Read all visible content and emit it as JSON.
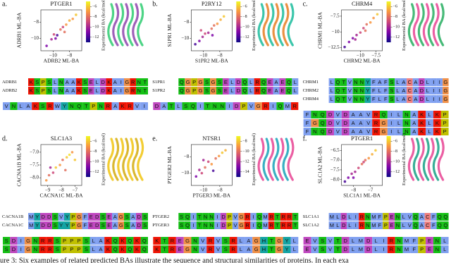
{
  "chart_data": [
    {
      "type": "scatter",
      "label": "a.",
      "title": "PTGER1",
      "xlabel": "ADRB2 ML-BA",
      "ylabel": "ADRB1 ML-BA",
      "colorbar_label": "Experimental BA (kcal/mol)",
      "x": [
        -10.8,
        -10.2,
        -9.9,
        -9.5,
        -9.1,
        -8.8,
        -8.4,
        -8.0,
        -7.6,
        -7.2,
        -9.7,
        -8.6
      ],
      "y": [
        -10.9,
        -10.1,
        -9.5,
        -9.6,
        -8.9,
        -8.6,
        -8.3,
        -7.8,
        -7.6,
        -7.1,
        -10.0,
        -9.2
      ],
      "c": [
        -11,
        -10,
        -9,
        -12,
        -8,
        -9,
        -7,
        -6.5,
        -7,
        -6,
        -11,
        -8
      ],
      "xlim": [
        -11.5,
        -6.5
      ],
      "ylim": [
        -11.5,
        -6.5
      ],
      "xticks": [
        {
          "value": -10,
          "label": "−10"
        },
        {
          "value": -8,
          "label": "−8"
        }
      ],
      "yticks": [
        {
          "value": -10,
          "label": "−10"
        },
        {
          "value": -8,
          "label": "−8"
        }
      ],
      "clim": [
        -13,
        -5
      ],
      "cticks": [
        {
          "value": -6,
          "label": "−6"
        },
        {
          "value": -8,
          "label": "−8"
        },
        {
          "value": -10,
          "label": "−10"
        },
        {
          "value": -12,
          "label": "−12"
        }
      ],
      "alignment": [
        [
          {
            "name": "ADRB1",
            "sequence": "KSPSLNAAKSELDKAIGRNT"
          },
          {
            "name": "ADRB2",
            "sequence": "KSPSLNAAKSELDKAIGRNT"
          }
        ],
        [
          {
            "sequence": "VNLAKSRWYNQTPNRAKRVI"
          }
        ]
      ]
    },
    {
      "type": "scatter",
      "label": "b.",
      "title": "P2RY12",
      "xlabel": "S1PR2 ML-BA",
      "ylabel": "S1PR1 ML-BA",
      "colorbar_label": "Experimental BA (kcal/mol)",
      "x": [
        -11.0,
        -10.5,
        -10.1,
        -9.8,
        -9.4,
        -9.0,
        -8.7,
        -8.3,
        -7.9,
        -7.5,
        -10.3,
        -8.9
      ],
      "y": [
        -10.7,
        -10.3,
        -9.8,
        -9.4,
        -9.3,
        -8.8,
        -8.4,
        -8.2,
        -7.7,
        -7.3,
        -9.0,
        -9.6
      ],
      "c": [
        -12,
        -11,
        -10,
        -9,
        -10,
        -8,
        -8,
        -7,
        -6.5,
        -6,
        -9,
        -11
      ],
      "xlim": [
        -11.5,
        -6.5
      ],
      "ylim": [
        -11.5,
        -6.5
      ],
      "xticks": [
        {
          "value": -10,
          "label": "−10"
        },
        {
          "value": -8,
          "label": "−8"
        }
      ],
      "yticks": [
        {
          "value": -10,
          "label": "−10"
        },
        {
          "value": -8,
          "label": "−8"
        }
      ],
      "clim": [
        -13,
        -5
      ],
      "cticks": [
        {
          "value": -6,
          "label": "−6"
        },
        {
          "value": -8,
          "label": "−8"
        },
        {
          "value": -10,
          "label": "−10"
        },
        {
          "value": -12,
          "label": "−12"
        }
      ],
      "alignment": [
        [
          {
            "name": "S1PR1",
            "sequence": "QGPGSGSELDQLRQEAEQL"
          },
          {
            "name": "S1PR2",
            "sequence": "QGPGSGSELDQLRQEAEQL"
          }
        ],
        [
          {
            "sequence": "DATLSQITNNIDPVGRIQMR"
          }
        ]
      ]
    },
    {
      "type": "scatter",
      "label": "c.",
      "title": "CHRM4",
      "xlabel": "CHRM2 ML-BA",
      "ylabel": "CHRM1 ML-BA",
      "colorbar_label": "Experimental BA (kcal/mol)",
      "x": [
        -12.5,
        -11.8,
        -11.2,
        -10.6,
        -10.0,
        -9.5,
        -9.0,
        -8.4,
        -7.9,
        -7.3,
        -10.8,
        -9.2
      ],
      "y": [
        -12.4,
        -11.6,
        -11.0,
        -10.5,
        -10.1,
        -9.4,
        -8.8,
        -8.5,
        -7.8,
        -7.2,
        -11.2,
        -9.8
      ],
      "c": [
        -12,
        -11,
        -11,
        -10,
        -9,
        -9,
        -8,
        -7,
        -7,
        -6,
        -10,
        -8
      ],
      "xlim": [
        -13,
        -6.5
      ],
      "ylim": [
        -13,
        -6.5
      ],
      "xticks": [
        {
          "value": -10,
          "label": "−10"
        },
        {
          "value": -7.5,
          "label": "−7.5"
        }
      ],
      "yticks": [
        {
          "value": -12.5,
          "label": "−12.5"
        },
        {
          "value": -10,
          "label": "−10"
        },
        {
          "value": -7.5,
          "label": "−7.5"
        }
      ],
      "clim": [
        -13,
        -5
      ],
      "cticks": [
        {
          "value": -6,
          "label": "−6"
        },
        {
          "value": -8,
          "label": "−8"
        },
        {
          "value": -10,
          "label": "−10"
        },
        {
          "value": -12,
          "label": "−12"
        }
      ],
      "alignment": [
        [
          {
            "name": "CHRM1",
            "sequence": "LQTVNNYFAFSLACADLIIG"
          },
          {
            "name": "CHRM2",
            "sequence": "LQTVNNYFLFSLACADLIIG"
          },
          {
            "name": "CHRM4",
            "sequence": "LQTVNNYFLFSLACADLIIG"
          }
        ],
        [
          {
            "sequence": "FNQDVDAAVRQILNAKLKP"
          },
          {
            "sequence": "FGQDVDAAVRGILNAKLKP"
          },
          {
            "sequence": "FNQDVDAAVRGILNAKLKP"
          }
        ]
      ]
    },
    {
      "type": "scatter",
      "label": "d.",
      "title": "SLC1A3",
      "xlabel": "CACNA1C ML-BA",
      "ylabel": "CACNA1B ML-BA",
      "colorbar_label": "Experimental BA (kcal/mol)",
      "x": [
        -9.1,
        -8.9,
        -8.6,
        -8.4,
        -8.1,
        -7.9,
        -7.6,
        -7.4,
        -7.2,
        -7.0,
        -8.8,
        -7.7
      ],
      "y": [
        -8.1,
        -7.9,
        -7.8,
        -7.6,
        -7.5,
        -7.3,
        -7.2,
        -7.1,
        -7.0,
        -7.3,
        -7.6,
        -7.7
      ],
      "c": [
        -7,
        -8,
        -9,
        -6,
        -7,
        -8,
        -6,
        -5.5,
        -7,
        -6,
        -10,
        -8
      ],
      "xlim": [
        -9.5,
        -6.5
      ],
      "ylim": [
        -8.3,
        -6.7
      ],
      "xticks": [
        {
          "value": -9,
          "label": "−9"
        },
        {
          "value": -8,
          "label": "−8"
        },
        {
          "value": -7,
          "label": "−7"
        }
      ],
      "yticks": [
        {
          "value": -8.0,
          "label": "−8.0"
        },
        {
          "value": -7.5,
          "label": "−7.5"
        },
        {
          "value": -7.0,
          "label": "−7.0"
        }
      ],
      "clim": [
        -13,
        -5
      ],
      "cticks": [
        {
          "value": -6,
          "label": "−6"
        },
        {
          "value": -8,
          "label": "−8"
        },
        {
          "value": -10,
          "label": "−10"
        },
        {
          "value": -12,
          "label": "−12"
        }
      ],
      "alignment": [
        [
          {
            "name": "CACNA1B",
            "sequence": "MYDDSVYPGFEDSEAGSADS"
          },
          {
            "name": "CACNA1C",
            "sequence": "MYDDSYYPGFEDSEAGSADS"
          }
        ],
        [
          {
            "sequence": "SDIGNRRSPPPSLAKQKQKQ"
          },
          {
            "sequence": "SDIGNRRSPPPSLAKQKQKQ"
          }
        ]
      ]
    },
    {
      "type": "scatter",
      "label": "e.",
      "title": "NTSR1",
      "xlabel": "PTGER3 ML-BA",
      "ylabel": "PTGER2 ML-BA",
      "colorbar_label": "Experimental BA (kcal/mol)",
      "x": [
        -10.9,
        -10.5,
        -10.2,
        -9.8,
        -9.4,
        -9.0,
        -8.5,
        -8.1,
        -7.7,
        -7.3,
        -10.0,
        -8.8
      ],
      "y": [
        -10.4,
        -9.6,
        -10.0,
        -9.3,
        -8.6,
        -8.9,
        -8.2,
        -7.9,
        -7.5,
        -7.2,
        -8.4,
        -9.7
      ],
      "c": [
        -13,
        -12,
        -11,
        -10,
        -11,
        -9,
        -10,
        -9,
        -8,
        -8.5,
        -12,
        -14
      ],
      "xlim": [
        -11.5,
        -6.5
      ],
      "ylim": [
        -11.5,
        -6.5
      ],
      "xticks": [
        {
          "value": -10,
          "label": "−10"
        },
        {
          "value": -8,
          "label": "−8"
        }
      ],
      "yticks": [
        {
          "value": -10,
          "label": "−10"
        },
        {
          "value": -8,
          "label": "−8"
        }
      ],
      "clim": [
        -15,
        -7
      ],
      "cticks": [
        {
          "value": -8,
          "label": "−8"
        },
        {
          "value": -10,
          "label": "−10"
        },
        {
          "value": -12,
          "label": "−12"
        },
        {
          "value": -14,
          "label": "−14"
        }
      ],
      "alignment": [
        [
          {
            "name": "PTGER2",
            "sequence": "SQITNNIDPVGRIQMRTRRT"
          },
          {
            "name": "PTGER3",
            "sequence": "SQITNNIDPVGRIQMRTRRT"
          }
        ],
        [
          {
            "sequence": "KTREGNVRVSRLAGHTGYL"
          },
          {
            "sequence": "KTREGNVRVSRLAGHTGYL"
          }
        ]
      ]
    },
    {
      "type": "scatter",
      "label": "f.",
      "title": "PTGER1",
      "xlabel": "SLC1A1 ML-BA",
      "ylabel": "SLC1A2 ML-BA",
      "colorbar_label": "Experimental BA (kcal/mol)",
      "x": [
        -8.5,
        -8.3,
        -8.1,
        -7.9,
        -7.7,
        -7.5,
        -7.3,
        -7.1,
        -6.9,
        -6.7,
        -8.0,
        -7.4
      ],
      "y": [
        -8.1,
        -7.9,
        -7.7,
        -7.6,
        -7.4,
        -7.2,
        -7.0,
        -6.9,
        -6.7,
        -6.5,
        -7.9,
        -7.1
      ],
      "c": [
        -12,
        -11,
        -10,
        -10,
        -9,
        -8,
        -8,
        -7,
        -6.5,
        -6,
        -11,
        -9
      ],
      "xlim": [
        -8.7,
        -6.3
      ],
      "ylim": [
        -8.3,
        -6.2
      ],
      "xticks": [
        {
          "value": -8,
          "label": "−8"
        },
        {
          "value": -7,
          "label": "−7"
        }
      ],
      "yticks": [
        {
          "value": -8.0,
          "label": "−8.0"
        },
        {
          "value": -7.5,
          "label": "−7.5"
        },
        {
          "value": -7.0,
          "label": "−7.0"
        },
        {
          "value": -6.5,
          "label": "−6.5"
        }
      ],
      "clim": [
        -13,
        -5
      ],
      "cticks": [
        {
          "value": -6,
          "label": "−6"
        },
        {
          "value": -8,
          "label": "−8"
        },
        {
          "value": -10,
          "label": "−10"
        },
        {
          "value": -12,
          "label": "−12"
        }
      ],
      "alignment": [
        [
          {
            "name": "SLC1A1",
            "sequence": "MLDLIRNMFPENLVQACFQQ"
          },
          {
            "name": "SLC1A2",
            "sequence": "MLDLIRNMFPENLVQACFQQ"
          }
        ],
        [
          {
            "sequence": "EVSVTDLMDLIRNMFPENL"
          },
          {
            "sequence": "EVSVTDLMDLIRNMFPENL"
          }
        ]
      ]
    }
  ],
  "colormap": [
    "#0d0887",
    "#7e03a8",
    "#cc4778",
    "#f89540",
    "#f0f921"
  ],
  "residue_colors": {
    "A": "#80a0f0",
    "I": "#80a0f0",
    "L": "#80a0f0",
    "M": "#80a0f0",
    "F": "#80a0f0",
    "W": "#80a0f0",
    "V": "#80a0f0",
    "K": "#f01505",
    "R": "#f01505",
    "E": "#c048c0",
    "D": "#c048c0",
    "N": "#15c015",
    "Q": "#15c015",
    "S": "#15c015",
    "T": "#15c015",
    "C": "#f08080",
    "G": "#f09048",
    "P": "#c0c000",
    "H": "#15a4a4",
    "Y": "#15a4a4"
  },
  "caption": "ure 3: Six examples of related predicted BAs illustrate the sequence and structural similarities of proteins. In each exa"
}
